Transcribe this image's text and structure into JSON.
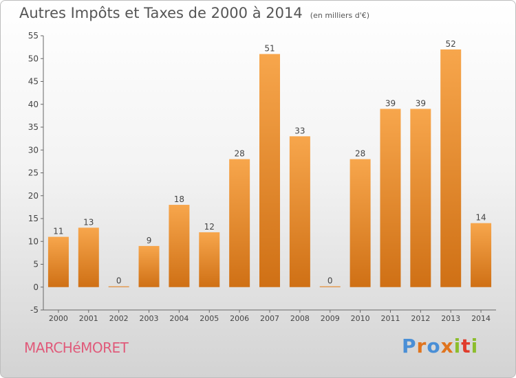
{
  "header": {
    "title": "Autres Impôts et Taxes de 2000 à 2014",
    "subtitle": "(en milliers d'€)"
  },
  "footer": {
    "commune": "MARCHéMORET",
    "logo": "Proxiti"
  },
  "colors": {
    "bar_light": "#f7a64c",
    "bar_dark": "#cf7015",
    "commune": "#e05a7a",
    "logo_letters": [
      "#4a8fd6",
      "#e0741e",
      "#4a8fd6",
      "#e0741e",
      "#8cbd2c",
      "#e03c2c",
      "#8cbd2c"
    ]
  },
  "chart_data": {
    "type": "bar",
    "title": "Autres Impôts et Taxes de 2000 à 2014",
    "subtitle": "(en milliers d'€)",
    "categories": [
      "2000",
      "2001",
      "2002",
      "2003",
      "2004",
      "2005",
      "2006",
      "2007",
      "2008",
      "2009",
      "2010",
      "2011",
      "2012",
      "2013",
      "2014"
    ],
    "values": [
      11,
      13,
      0,
      9,
      18,
      12,
      28,
      51,
      33,
      0,
      28,
      39,
      39,
      52,
      14
    ],
    "ylim": [
      -5,
      55
    ],
    "yticks": [
      -5,
      0,
      5,
      10,
      15,
      20,
      25,
      30,
      35,
      40,
      45,
      50,
      55
    ],
    "grid": false,
    "legend": "none"
  }
}
